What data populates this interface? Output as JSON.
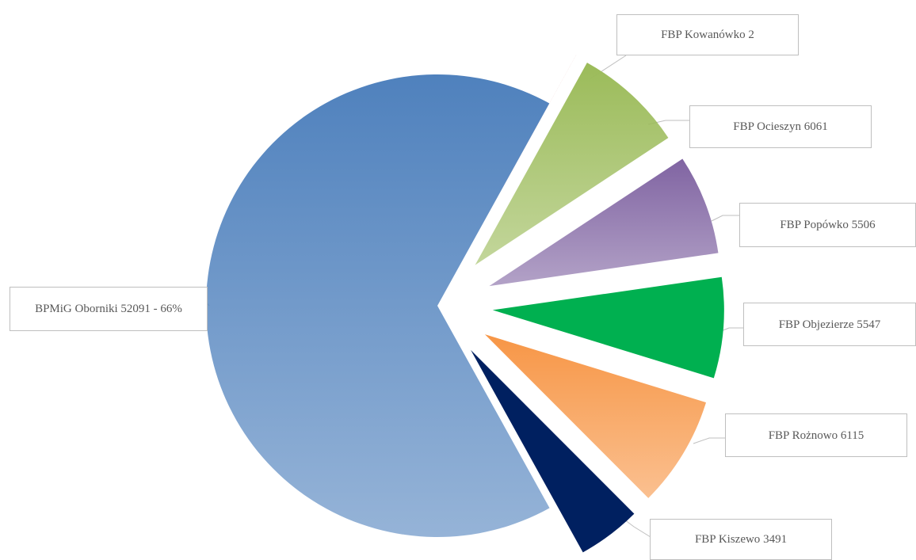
{
  "chart_data": {
    "type": "pie",
    "categories": [
      "BPMiG Oborniki",
      "FBP Kowanówko",
      "FBP Ocieszyn",
      "FBP Popówko",
      "FBP Objezierze",
      "FBP Rożnowo",
      "FBP Kiszewo"
    ],
    "values": [
      52091,
      2,
      6061,
      5506,
      5547,
      6115,
      3491
    ],
    "value_labels": [
      "52091 - 66%",
      "2",
      "6061",
      "5506",
      "5547",
      "6115",
      "3491"
    ],
    "colors": [
      "#4f81bd",
      "#c0504d",
      "#9bbb59",
      "#8064a2",
      "#00b050",
      "#f79646",
      "#002060"
    ]
  }
}
